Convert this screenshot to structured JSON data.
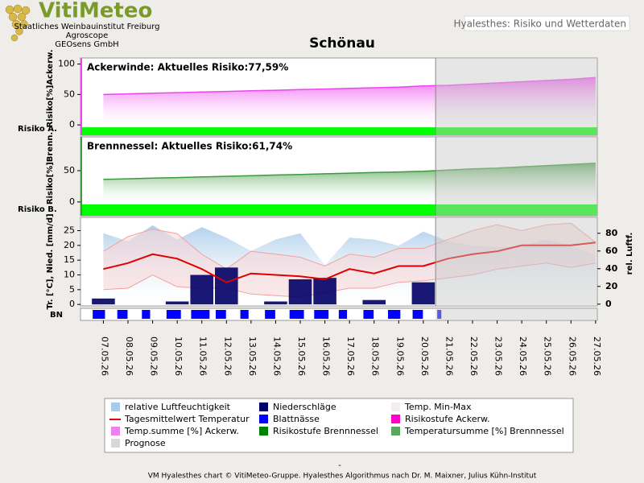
{
  "header": {
    "logo": "VitiMeteo",
    "institutions": [
      "Staatliches Weinbauinstitut Freiburg",
      "Agroscope",
      "GEOsens GmbH"
    ],
    "app_title": "Hyalesthes: Risiko und Wetterdaten"
  },
  "title": "Schönau",
  "forecast": [
    false,
    false,
    false,
    false,
    false,
    false,
    false,
    false,
    false,
    false,
    false,
    false,
    false,
    false,
    true,
    true,
    true,
    true,
    true,
    true,
    true
  ],
  "forecast_color": "#c8c8c8",
  "chart_data": [
    {
      "type": "area",
      "annotation": "Ackerwinde:  Aktuelles Risiko:77,59%",
      "ylabel": "Risiko[%]Ackerw.",
      "band_label": "Risiko A.",
      "color": "#ee44ee",
      "risk_color": "#00ff00",
      "values": [
        50,
        51,
        52,
        53,
        54,
        55,
        56,
        57,
        58,
        59,
        60,
        61,
        62,
        64,
        65,
        67,
        69,
        71,
        73,
        75,
        78
      ],
      "ylim": [
        -17,
        110
      ],
      "yticks": [
        0,
        50,
        100
      ]
    },
    {
      "type": "area",
      "annotation": "Brennnessel:  Aktuelles Risiko:61,74%",
      "ylabel": "Risiko[%]Brenn.",
      "band_label": "Risiko B.",
      "color": "#3c9a3c",
      "risk_color": "#00ff00",
      "values": [
        36,
        37,
        38,
        39,
        40,
        41,
        42,
        43,
        44,
        45,
        46,
        47,
        48,
        49,
        51,
        53,
        54,
        56,
        58,
        60,
        62
      ],
      "ylim": [
        -22,
        104
      ],
      "yticks": [
        0,
        50
      ]
    },
    {
      "type": "weather",
      "ylabel": "Tr. [°C], Nied. [mm/d]",
      "y2label": "rel. Luftf.",
      "categories": [
        "07.05.26",
        "08.05.26",
        "09.05.26",
        "10.05.26",
        "11.05.26",
        "12.05.26",
        "13.05.26",
        "14.05.26",
        "15.05.26",
        "16.05.26",
        "17.05.26",
        "18.05.26",
        "19.05.26",
        "20.05.26",
        "21.05.26",
        "22.05.26",
        "23.05.26",
        "24.05.26",
        "25.05.26",
        "26.05.26",
        "27.05.26"
      ],
      "humidity": {
        "color": "#a9cbea",
        "axis": "y2",
        "values": [
          80,
          71,
          89,
          73,
          87,
          75,
          60,
          73,
          80,
          44,
          75,
          73,
          66,
          82,
          71,
          66,
          64,
          66,
          73,
          66,
          55
        ]
      },
      "temp_range": {
        "color": "#f4a0a0",
        "high": [
          18,
          23,
          25.5,
          24,
          17,
          12,
          18,
          17,
          16,
          13,
          17,
          16,
          19,
          19,
          22,
          25,
          27,
          25,
          27,
          27.5,
          21
        ],
        "low": [
          5,
          5.5,
          10,
          6,
          5.5,
          5.5,
          3.5,
          3,
          2.5,
          4,
          5.5,
          5.5,
          7.5,
          8,
          9,
          10,
          12,
          13,
          14,
          12.5,
          14
        ]
      },
      "precipitation": {
        "color": "#000066",
        "values": [
          2,
          0,
          0,
          1,
          10,
          12.5,
          0,
          1,
          8.5,
          9,
          0,
          1.5,
          0,
          7.5,
          null,
          null,
          null,
          null,
          null,
          null,
          null
        ]
      },
      "temperature": {
        "color": "#e00000",
        "values": [
          12,
          14,
          17,
          15.5,
          12,
          7.5,
          10.5,
          10,
          9.5,
          8.5,
          12,
          10.5,
          13,
          13,
          15.5,
          17,
          18,
          20,
          20,
          20,
          21
        ]
      },
      "leaf_wetness": {
        "label": "BN",
        "color": "#0000ff",
        "values": [
          12,
          10,
          8,
          14,
          18,
          10,
          8,
          10,
          14,
          14,
          8,
          10,
          12,
          10,
          4,
          0,
          0,
          0,
          0,
          0,
          0
        ]
      },
      "ylim": [
        -0.5,
        29.5
      ],
      "yticks": [
        0,
        5,
        10,
        15,
        20,
        25
      ],
      "y2lim": [
        -2,
        98
      ],
      "y2ticks": [
        0,
        20,
        40,
        60,
        80
      ]
    }
  ],
  "legend": [
    {
      "label": "relative Luftfeuchtigkeit",
      "color": "#a9cbea",
      "marker": "box"
    },
    {
      "label": "Niederschläge",
      "color": "#000066",
      "marker": "box"
    },
    {
      "label": "Temp. Min-Max",
      "color": "#f2eeee",
      "marker": "box"
    },
    {
      "label": "Tagesmittelwert Temperatur",
      "color": "#e00000",
      "marker": "line"
    },
    {
      "label": "Blattnässe",
      "color": "#0000ff",
      "marker": "box"
    },
    {
      "label": "Risikostufe Ackerw.",
      "color": "#ff00cc",
      "marker": "box"
    },
    {
      "label": "Temp.summe [%] Ackerw.",
      "color": "#f080f0",
      "marker": "box"
    },
    {
      "label": "Risikostufe Brennnessel",
      "color": "#008000",
      "marker": "box"
    },
    {
      "label": "Temperatursumme [%] Brennnessel",
      "color": "#5aa65a",
      "marker": "box"
    },
    {
      "label": "Prognose",
      "color": "#d8d8d8",
      "marker": "box"
    }
  ],
  "separator": "-",
  "footer": "VM Hyalesthes chart © VitiMeteo-Gruppe. Hyalesthes Algorithmus nach Dr. M. Maixner, Julius Kühn-Institut"
}
